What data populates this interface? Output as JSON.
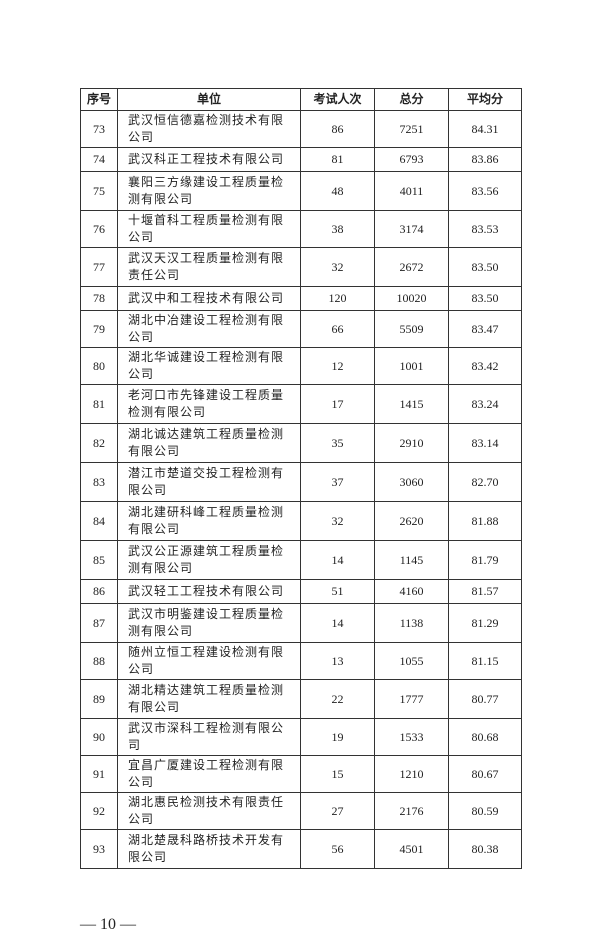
{
  "table": {
    "headers": [
      "序号",
      "单位",
      "考试人次",
      "总分",
      "平均分"
    ],
    "rows": [
      [
        "73",
        "武汉恒信德嘉检测技术有限公司",
        "86",
        "7251",
        "84.31"
      ],
      [
        "74",
        "武汉科正工程技术有限公司",
        "81",
        "6793",
        "83.86"
      ],
      [
        "75",
        "襄阳三方缘建设工程质量检测有限公司",
        "48",
        "4011",
        "83.56"
      ],
      [
        "76",
        "十堰首科工程质量检测有限公司",
        "38",
        "3174",
        "83.53"
      ],
      [
        "77",
        "武汉天汉工程质量检测有限责任公司",
        "32",
        "2672",
        "83.50"
      ],
      [
        "78",
        "武汉中和工程技术有限公司",
        "120",
        "10020",
        "83.50"
      ],
      [
        "79",
        "湖北中冶建设工程检测有限公司",
        "66",
        "5509",
        "83.47"
      ],
      [
        "80",
        "湖北华诚建设工程检测有限公司",
        "12",
        "1001",
        "83.42"
      ],
      [
        "81",
        "老河口市先锋建设工程质量检测有限公司",
        "17",
        "1415",
        "83.24"
      ],
      [
        "82",
        "湖北诚达建筑工程质量检测有限公司",
        "35",
        "2910",
        "83.14"
      ],
      [
        "83",
        "潜江市楚道交投工程检测有限公司",
        "37",
        "3060",
        "82.70"
      ],
      [
        "84",
        "湖北建研科峰工程质量检测有限公司",
        "32",
        "2620",
        "81.88"
      ],
      [
        "85",
        "武汉公正源建筑工程质量检测有限公司",
        "14",
        "1145",
        "81.79"
      ],
      [
        "86",
        "武汉轻工工程技术有限公司",
        "51",
        "4160",
        "81.57"
      ],
      [
        "87",
        "武汉市明鉴建设工程质量检测有限公司",
        "14",
        "1138",
        "81.29"
      ],
      [
        "88",
        "随州立恒工程建设检测有限公司",
        "13",
        "1055",
        "81.15"
      ],
      [
        "89",
        "湖北精达建筑工程质量检测有限公司",
        "22",
        "1777",
        "80.77"
      ],
      [
        "90",
        "武汉市深科工程检测有限公司",
        "19",
        "1533",
        "80.68"
      ],
      [
        "91",
        "宜昌广厦建设工程检测有限公司",
        "15",
        "1210",
        "80.67"
      ],
      [
        "92",
        "湖北惠民检测技术有限责任公司",
        "27",
        "2176",
        "80.59"
      ],
      [
        "93",
        "湖北楚晟科路桥技术开发有限公司",
        "56",
        "4501",
        "80.38"
      ]
    ]
  },
  "page_number": "— 10 —"
}
